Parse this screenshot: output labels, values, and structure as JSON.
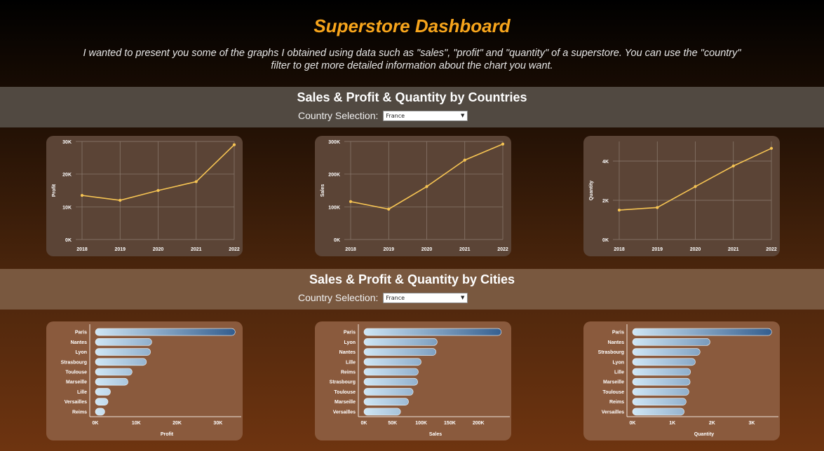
{
  "page": {
    "title": "Superstore Dashboard",
    "intro": "I wanted to present you some of the graphs I obtained using data such as \"sales\", \"profit\" and \"quantity\" of a superstore. You can use the \"country\" filter to get more detailed information about the chart you want."
  },
  "section1": {
    "title": "Sales & Profit & Quantity by Countries",
    "filter_label": "Country Selection:",
    "filter_value": "France"
  },
  "section2": {
    "title": "Sales & Profit & Quantity by Cities",
    "filter_label": "Country Selection:",
    "filter_value": "France"
  },
  "colors": {
    "title": "#f7a51c",
    "line": "#f6c453",
    "bar_light": "#cfe6f5",
    "bar_dark": "#2f5a8c"
  },
  "chart_data": [
    {
      "id": "profit-by-year",
      "type": "line",
      "ylabel": "Profit",
      "x": [
        "2018",
        "2019",
        "2020",
        "2021",
        "2022"
      ],
      "values": [
        13500,
        12000,
        15000,
        17700,
        29000
      ],
      "ylim": [
        0,
        30000
      ],
      "yticks": [
        0,
        10000,
        20000,
        30000
      ],
      "ytick_labels": [
        "0K",
        "10K",
        "20K",
        "30K"
      ],
      "grid": true
    },
    {
      "id": "sales-by-year",
      "type": "line",
      "ylabel": "Sales",
      "x": [
        "2018",
        "2019",
        "2020",
        "2021",
        "2022"
      ],
      "values": [
        116000,
        93000,
        162000,
        243000,
        292000
      ],
      "ylim": [
        0,
        300000
      ],
      "yticks": [
        0,
        100000,
        200000,
        300000
      ],
      "ytick_labels": [
        "0K",
        "100K",
        "200K",
        "300K"
      ],
      "grid": true
    },
    {
      "id": "quantity-by-year",
      "type": "line",
      "ylabel": "Quantity",
      "x": [
        "2018",
        "2019",
        "2020",
        "2021",
        "2022"
      ],
      "values": [
        1500,
        1630,
        2700,
        3750,
        4650
      ],
      "ylim": [
        0,
        5000
      ],
      "yticks": [
        0,
        2000,
        4000
      ],
      "ytick_labels": [
        "0K",
        "2K",
        "4K"
      ],
      "grid": true
    },
    {
      "id": "profit-by-city",
      "type": "bar",
      "xlabel": "Profit",
      "categories": [
        "Paris",
        "Nantes",
        "Lyon",
        "Strasbourg",
        "Toulouse",
        "Marseille",
        "Lille",
        "Versailles",
        "Reims"
      ],
      "values": [
        34200,
        13800,
        13500,
        12500,
        9000,
        8000,
        3700,
        3100,
        2300
      ],
      "xlim": [
        0,
        35000
      ],
      "xticks": [
        0,
        10000,
        20000,
        30000
      ],
      "xtick_labels": [
        "0K",
        "10K",
        "20K",
        "30K"
      ]
    },
    {
      "id": "sales-by-city",
      "type": "bar",
      "xlabel": "Sales",
      "categories": [
        "Paris",
        "Lyon",
        "Nantes",
        "Lille",
        "Reims",
        "Strasbourg",
        "Toulouse",
        "Marseille",
        "Versailles"
      ],
      "values": [
        240000,
        128000,
        126000,
        100000,
        95000,
        94000,
        86000,
        78000,
        64000
      ],
      "xlim": [
        0,
        250000
      ],
      "xticks": [
        0,
        50000,
        100000,
        150000,
        200000
      ],
      "xtick_labels": [
        "0K",
        "50K",
        "100K",
        "150K",
        "200K"
      ]
    },
    {
      "id": "quantity-by-city",
      "type": "bar",
      "xlabel": "Quantity",
      "categories": [
        "Paris",
        "Nantes",
        "Strasbourg",
        "Lyon",
        "Lille",
        "Marseille",
        "Toulouse",
        "Reims",
        "Versailles"
      ],
      "values": [
        3500,
        1950,
        1700,
        1580,
        1460,
        1450,
        1420,
        1350,
        1300
      ],
      "xlim": [
        0,
        3600
      ],
      "xticks": [
        0,
        1000,
        2000,
        3000
      ],
      "xtick_labels": [
        "0K",
        "1K",
        "2K",
        "3K"
      ]
    }
  ]
}
